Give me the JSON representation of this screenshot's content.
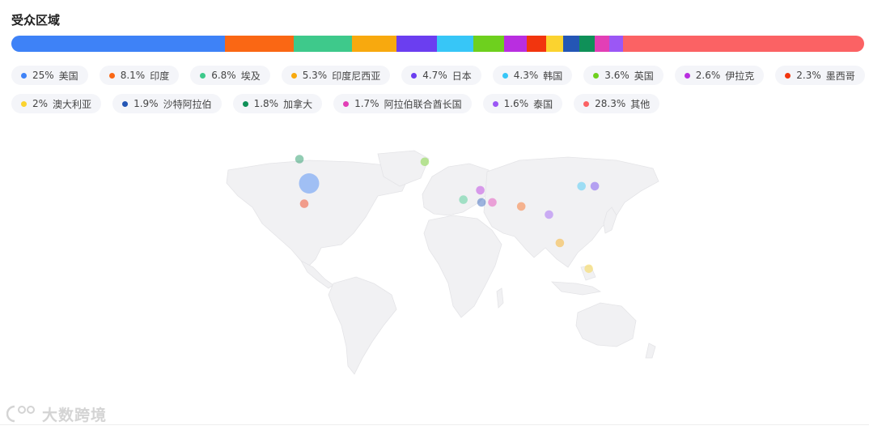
{
  "section": {
    "title": "受众区域"
  },
  "chart_data": {
    "type": "bar",
    "categories": [
      "美国",
      "印度",
      "埃及",
      "印度尼西亚",
      "日本",
      "韩国",
      "英国",
      "伊拉克",
      "墨西哥",
      "澳大利亚",
      "沙特阿拉伯",
      "加拿大",
      "阿拉伯联合酋长国",
      "泰国",
      "其他"
    ],
    "values": [
      25,
      8.1,
      6.8,
      5.3,
      4.7,
      4.3,
      3.6,
      2.6,
      2.3,
      2,
      1.9,
      1.8,
      1.7,
      1.6,
      28.3
    ],
    "labels": [
      "25%",
      "8.1%",
      "6.8%",
      "5.3%",
      "4.7%",
      "4.3%",
      "3.6%",
      "2.6%",
      "2.3%",
      "2%",
      "1.9%",
      "1.8%",
      "1.7%",
      "1.6%",
      "28.3%"
    ],
    "colors": [
      "#3e82f7",
      "#fa6714",
      "#3ec98b",
      "#f8a90e",
      "#6b3ef0",
      "#37c6f7",
      "#6ed01e",
      "#b92ee0",
      "#f2350e",
      "#fbd32f",
      "#2456b5",
      "#0f9058",
      "#e23fb6",
      "#9b57f5",
      "#fb6264"
    ],
    "ylim": [
      0,
      100
    ]
  },
  "map": {
    "markers": [
      {
        "country": "美国",
        "lat": 38,
        "lon": -98
      },
      {
        "country": "印度",
        "lat": 21,
        "lon": 78
      },
      {
        "country": "埃及",
        "lat": 26,
        "lon": 30
      },
      {
        "country": "印度尼西亚",
        "lat": -6,
        "lon": 110
      },
      {
        "country": "日本",
        "lat": 36,
        "lon": 139
      },
      {
        "country": "韩国",
        "lat": 36,
        "lon": 128
      },
      {
        "country": "英国",
        "lat": 54,
        "lon": -2
      },
      {
        "country": "伊拉克",
        "lat": 33,
        "lon": 44
      },
      {
        "country": "墨西哥",
        "lat": 23,
        "lon": -102
      },
      {
        "country": "澳大利亚",
        "lat": -25,
        "lon": 134
      },
      {
        "country": "沙特阿拉伯",
        "lat": 24,
        "lon": 45
      },
      {
        "country": "加拿大",
        "lat": 56,
        "lon": -106
      },
      {
        "country": "阿拉伯联合酋长国",
        "lat": 24,
        "lon": 54
      },
      {
        "country": "泰国",
        "lat": 15,
        "lon": 101
      }
    ]
  },
  "watermark": {
    "text": "大数跨境"
  }
}
